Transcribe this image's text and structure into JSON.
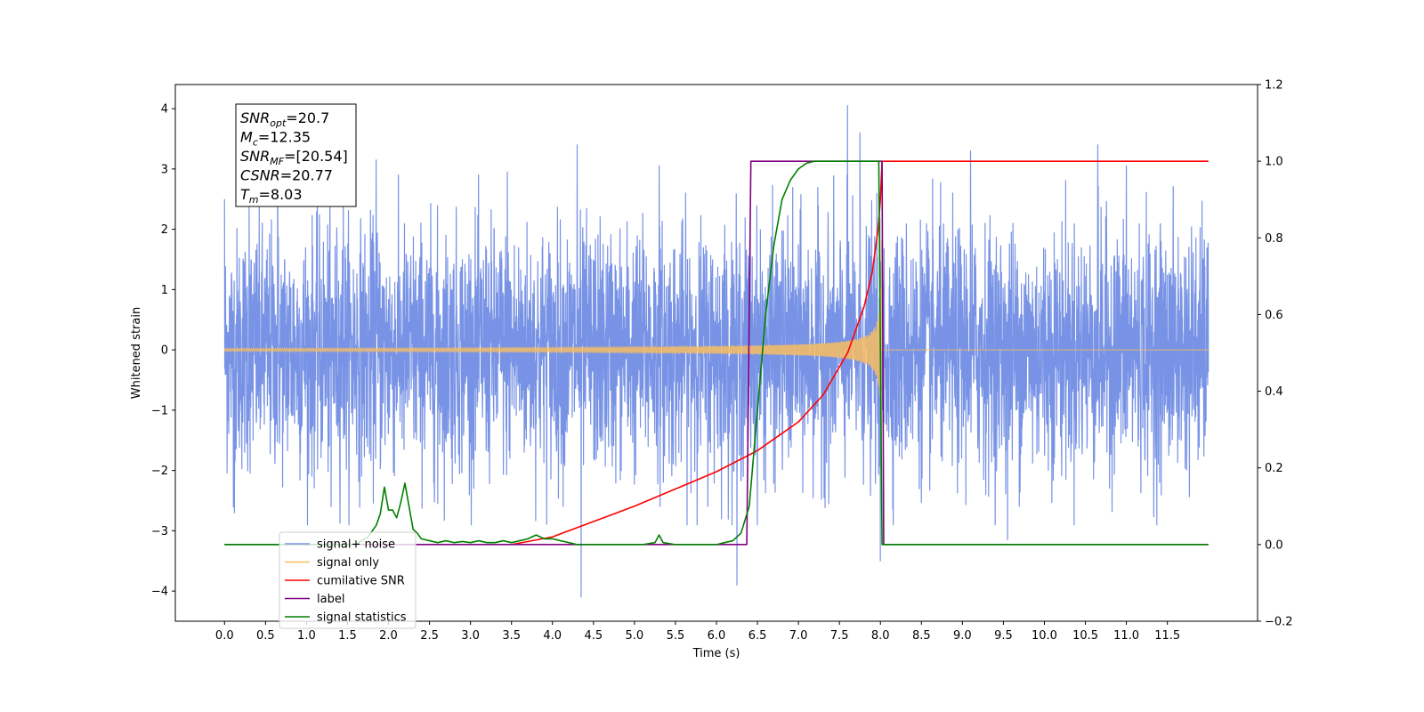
{
  "chart_data": {
    "type": "line",
    "xlabel": "Time (s)",
    "ylabel": "Whitened strain",
    "xlim": [
      -0.6,
      12.6
    ],
    "ylim": [
      -4.5,
      4.4
    ],
    "y2lim": [
      -0.2,
      1.2
    ],
    "x_ticks": [
      0.0,
      0.5,
      1.0,
      1.5,
      2.0,
      2.5,
      3.0,
      3.5,
      4.0,
      4.5,
      5.0,
      5.5,
      6.0,
      6.5,
      7.0,
      7.5,
      8.0,
      8.5,
      9.0,
      9.5,
      10.0,
      10.5,
      11.0,
      11.5
    ],
    "x_tick_labels": [
      "0.0",
      "0.5",
      "1.0",
      "1.5",
      "2.0",
      "2.5",
      "3.0",
      "3.5",
      "4.0",
      "4.5",
      "5.0",
      "5.5",
      "6.0",
      "6.5",
      "7.0",
      "7.5",
      "8.0",
      "8.5",
      "9.0",
      "9.5",
      "10.0",
      "10.5",
      "11.0",
      "11.5"
    ],
    "y_ticks": [
      -4,
      -3,
      -2,
      -1,
      0,
      1,
      2,
      3,
      4
    ],
    "y_tick_labels": [
      "−4",
      "−3",
      "−2",
      "−1",
      "0",
      "1",
      "2",
      "3",
      "4"
    ],
    "y2_ticks": [
      -0.2,
      0.0,
      0.2,
      0.4,
      0.6,
      0.8,
      1.0,
      1.2
    ],
    "y2_tick_labels": [
      "−0.2",
      "0.0",
      "0.2",
      "0.4",
      "0.6",
      "0.8",
      "1.0",
      "1.2"
    ],
    "grid": false,
    "legend_position": "lower-left",
    "annotation": {
      "lines": [
        {
          "base": "SNR",
          "sub": "opt",
          "value": "=20.7"
        },
        {
          "base": "M",
          "sub": "c",
          "value": "=12.35"
        },
        {
          "base": "SNR",
          "sub": "MF",
          "value": "=[20.54]"
        },
        {
          "base": "CSNR",
          "sub": "",
          "value": "=20.77"
        },
        {
          "base": "T",
          "sub": "m",
          "value": "=8.03"
        }
      ]
    },
    "series": [
      {
        "name": "signal+ noise",
        "axis": "left",
        "color": "#7893e5",
        "style": "noise",
        "x_range": [
          0.0,
          12.0
        ],
        "envelope_typical": 1.6,
        "spikes": [
          {
            "x": 0.0,
            "y": 2.5
          },
          {
            "x": 0.12,
            "y": -2.7
          },
          {
            "x": 0.3,
            "y": 2.4
          },
          {
            "x": 0.65,
            "y": 3.05
          },
          {
            "x": 1.3,
            "y": -2.6
          },
          {
            "x": 1.45,
            "y": 2.85
          },
          {
            "x": 1.85,
            "y": 3.15
          },
          {
            "x": 2.6,
            "y": -2.55
          },
          {
            "x": 3.45,
            "y": 2.95
          },
          {
            "x": 4.3,
            "y": 3.4
          },
          {
            "x": 4.35,
            "y": -4.1
          },
          {
            "x": 5.3,
            "y": 3.05
          },
          {
            "x": 6.25,
            "y": -3.9
          },
          {
            "x": 7.6,
            "y": 4.05
          },
          {
            "x": 7.75,
            "y": 3.6
          },
          {
            "x": 8.0,
            "y": -3.5
          },
          {
            "x": 9.1,
            "y": 3.3
          },
          {
            "x": 9.55,
            "y": -3.15
          },
          {
            "x": 10.65,
            "y": 3.4
          },
          {
            "x": 11.0,
            "y": 3.05
          }
        ]
      },
      {
        "name": "signal only",
        "axis": "left",
        "color": "#f7bd63",
        "style": "chirp",
        "x_range": [
          0.0,
          12.0
        ],
        "merger_time": 8.02,
        "peak": 3.7
      },
      {
        "name": "cumilative SNR",
        "axis": "right",
        "color": "#ff0000",
        "x": [
          3.5,
          4.0,
          4.5,
          5.0,
          5.5,
          6.0,
          6.5,
          7.0,
          7.3,
          7.6,
          7.8,
          7.9,
          7.97,
          8.0,
          8.02,
          8.05,
          12.0
        ],
        "y": [
          0.0,
          0.02,
          0.06,
          0.1,
          0.145,
          0.19,
          0.245,
          0.32,
          0.39,
          0.5,
          0.62,
          0.71,
          0.82,
          0.9,
          1.0,
          1.0,
          1.0
        ]
      },
      {
        "name": "label",
        "axis": "right",
        "color": "#800080",
        "x": [
          0.0,
          6.37,
          6.42,
          8.02,
          8.04,
          12.0
        ],
        "y": [
          0.0,
          0.0,
          1.0,
          1.0,
          0.0,
          0.0
        ]
      },
      {
        "name": "signal statistics",
        "axis": "right",
        "color": "#008000",
        "x": [
          0.0,
          1.6,
          1.75,
          1.85,
          1.9,
          1.95,
          2.0,
          2.05,
          2.1,
          2.15,
          2.2,
          2.25,
          2.3,
          2.35,
          2.4,
          2.5,
          2.6,
          2.7,
          2.8,
          2.9,
          3.0,
          3.1,
          3.2,
          3.3,
          3.4,
          3.5,
          3.6,
          3.7,
          3.75,
          3.8,
          3.85,
          3.9,
          4.0,
          4.1,
          4.2,
          4.3,
          4.4,
          5.1,
          5.25,
          5.3,
          5.35,
          5.5,
          6.0,
          6.1,
          6.2,
          6.3,
          6.4,
          6.5,
          6.6,
          6.7,
          6.8,
          6.9,
          7.0,
          7.1,
          7.2,
          7.3,
          7.5,
          7.8,
          7.98,
          8.02,
          8.05,
          8.1,
          12.0
        ],
        "y": [
          0.0,
          0.0,
          0.02,
          0.05,
          0.08,
          0.15,
          0.09,
          0.09,
          0.07,
          0.11,
          0.16,
          0.1,
          0.04,
          0.03,
          0.015,
          0.01,
          0.005,
          0.01,
          0.005,
          0.008,
          0.005,
          0.01,
          0.005,
          0.005,
          0.01,
          0.005,
          0.01,
          0.015,
          0.02,
          0.025,
          0.02,
          0.015,
          0.015,
          0.01,
          0.005,
          0.0,
          0.0,
          0.0,
          0.005,
          0.025,
          0.005,
          0.0,
          0.0,
          0.005,
          0.01,
          0.03,
          0.1,
          0.35,
          0.6,
          0.78,
          0.9,
          0.95,
          0.98,
          0.995,
          1.0,
          1.0,
          1.0,
          1.0,
          1.0,
          0.0,
          0.0,
          0.0,
          0.0
        ]
      }
    ],
    "legend_entries": [
      {
        "label": "signal+ noise",
        "color": "#7893e5"
      },
      {
        "label": "signal only",
        "color": "#f7bd63"
      },
      {
        "label": "cumilative SNR",
        "color": "#ff0000"
      },
      {
        "label": "label",
        "color": "#800080"
      },
      {
        "label": "signal statistics",
        "color": "#008000"
      }
    ]
  }
}
